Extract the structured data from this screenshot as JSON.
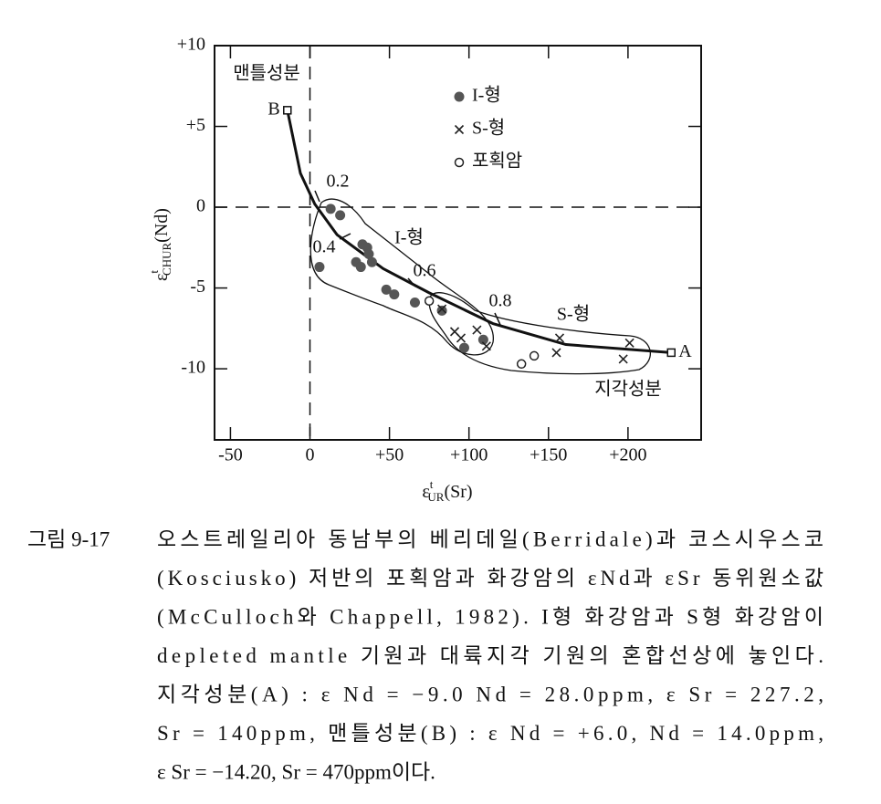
{
  "chart_data": {
    "type": "scatter",
    "x_label": {
      "symbol": "ε",
      "sup": "t",
      "sub": "UR",
      "unit": "(Sr)"
    },
    "y_label": {
      "symbol": "ε",
      "sup": "t",
      "sub": "CHUR",
      "unit": "(Nd)"
    },
    "xlim": [
      -60,
      246
    ],
    "ylim": [
      -14.4,
      10
    ],
    "xticks": [
      -50,
      0,
      {
        "value": 50,
        "label": "+50"
      },
      {
        "value": 100,
        "label": "+100"
      },
      {
        "value": 150,
        "label": "+150"
      },
      {
        "value": 200,
        "label": "+200"
      }
    ],
    "yticks": [
      {
        "value": 10,
        "label": "+10"
      },
      {
        "value": 5,
        "label": "+5"
      },
      0,
      -5,
      -10
    ],
    "reference_lines": {
      "x": [
        0
      ],
      "y": [
        0
      ]
    },
    "legend": "upper right",
    "series": [
      {
        "name": "I-형",
        "marker": "filled-circle",
        "color": "#555555",
        "x": [
          13,
          19,
          6,
          33,
          36,
          37,
          29,
          32,
          39,
          48,
          53,
          66,
          83,
          109,
          97
        ],
        "values": [
          -0.1,
          -0.5,
          -3.7,
          -2.3,
          -2.5,
          -2.9,
          -3.4,
          -3.7,
          -3.4,
          -5.1,
          -5.4,
          -5.9,
          -6.4,
          -8.2,
          -8.7
        ]
      },
      {
        "name": "S-형",
        "marker": "cross",
        "color": "#222222",
        "x": [
          83,
          91,
          105,
          95,
          111,
          157,
          155,
          201,
          197
        ],
        "values": [
          -6.3,
          -7.7,
          -7.6,
          -8.1,
          -8.6,
          -8.1,
          -9.0,
          -8.4,
          -9.4
        ]
      },
      {
        "name": "포획암",
        "marker": "open-circle",
        "color": "#222222",
        "x": [
          75,
          141,
          133
        ],
        "values": [
          -5.8,
          -9.2,
          -9.7
        ]
      }
    ],
    "mixing_line": {
      "x": [
        -14.2,
        -6,
        3,
        17,
        46,
        75,
        115,
        161,
        227.2
      ],
      "values": [
        6.0,
        2.1,
        0.2,
        -1.7,
        -3.8,
        -5.3,
        -7.2,
        -8.5,
        -9.0
      ]
    },
    "mixing_fractions": [
      0.2,
      0.4,
      0.6,
      0.8
    ],
    "endmembers": [
      {
        "label": "A",
        "x": 227.2,
        "y": -9.0
      },
      {
        "label": "B",
        "x": -14.2,
        "y": 6.0
      }
    ],
    "annotations": [
      "맨틀성분",
      "지각성분",
      "I-형",
      "S-형"
    ],
    "caption": {
      "label": "그림 9-17",
      "lines": [
        "오스트레일리아 동남부의 베리데일(Berridale)과 코스시우스코",
        "(Kosciusko) 저반의 포획암과 화강암의 εNd과 εSr 동위원소값",
        "(McCulloch와 Chappell, 1982). I형 화강암과 S형 화강암이",
        "depleted mantle 기원과 대륙지각 기원의 혼합선상에 놓인다.",
        "지각성분(A) : ε Nd = −9.0   Nd = 28.0ppm, ε Sr = 227.2,",
        "Sr = 140ppm, 맨틀성분(B) : ε Nd = +6.0,   Nd = 14.0ppm,",
        "ε Sr = −14.20,  Sr = 470ppm이다."
      ]
    }
  }
}
